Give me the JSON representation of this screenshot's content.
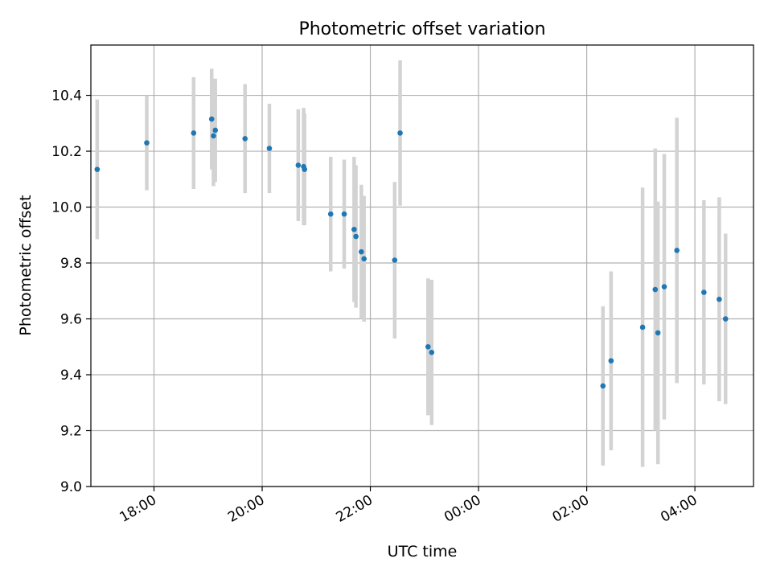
{
  "chart_data": {
    "type": "scatter",
    "title": "Photometric offset variation",
    "xlabel": "UTC time",
    "ylabel": "Photometric offset",
    "x_unit": "UTC time (hours after 00:00 of the first night; values above 24 fall on the next day)",
    "xlim": [
      "16:50",
      "05:05"
    ],
    "ylim": [
      9.0,
      10.58
    ],
    "x_ticks": [
      "18:00",
      "20:00",
      "22:00",
      "00:00",
      "02:00",
      "04:00"
    ],
    "y_ticks": [
      "9.0",
      "9.2",
      "9.4",
      "9.6",
      "9.8",
      "10.0",
      "10.2",
      "10.4"
    ],
    "grid": true,
    "colors": {
      "point": "#1f77b4",
      "errorbar": "#d3d3d3",
      "grid": "#b0b0b0"
    },
    "points": [
      {
        "t": "16:57",
        "y": 10.135,
        "err": 0.25
      },
      {
        "t": "17:52",
        "y": 10.23,
        "err": 0.17
      },
      {
        "t": "18:44",
        "y": 10.265,
        "err": 0.2
      },
      {
        "t": "19:04",
        "y": 10.315,
        "err": 0.18
      },
      {
        "t": "19:06",
        "y": 10.255,
        "err": 0.18
      },
      {
        "t": "19:08",
        "y": 10.275,
        "err": 0.185
      },
      {
        "t": "19:41",
        "y": 10.245,
        "err": 0.195
      },
      {
        "t": "20:08",
        "y": 10.21,
        "err": 0.16
      },
      {
        "t": "20:40",
        "y": 10.15,
        "err": 0.2
      },
      {
        "t": "20:46",
        "y": 10.145,
        "err": 0.21
      },
      {
        "t": "20:47",
        "y": 10.135,
        "err": 0.2
      },
      {
        "t": "21:16",
        "y": 9.975,
        "err": 0.205
      },
      {
        "t": "21:31",
        "y": 9.975,
        "err": 0.195
      },
      {
        "t": "21:42",
        "y": 9.92,
        "err": 0.26
      },
      {
        "t": "21:44",
        "y": 9.895,
        "err": 0.255
      },
      {
        "t": "21:50",
        "y": 9.84,
        "err": 0.24
      },
      {
        "t": "21:53",
        "y": 9.815,
        "err": 0.225
      },
      {
        "t": "22:27",
        "y": 9.81,
        "err": 0.28
      },
      {
        "t": "22:33",
        "y": 10.265,
        "err": 0.26
      },
      {
        "t": "23:04",
        "y": 9.5,
        "err": 0.245
      },
      {
        "t": "23:08",
        "y": 9.48,
        "err": 0.26
      },
      {
        "t": "02:18",
        "y": 9.36,
        "err": 0.285
      },
      {
        "t": "02:27",
        "y": 9.45,
        "err": 0.32
      },
      {
        "t": "03:02",
        "y": 9.57,
        "err": 0.5
      },
      {
        "t": "03:16",
        "y": 9.705,
        "err": 0.505
      },
      {
        "t": "03:19",
        "y": 9.55,
        "err": 0.47
      },
      {
        "t": "03:26",
        "y": 9.715,
        "err": 0.475
      },
      {
        "t": "03:40",
        "y": 9.845,
        "err": 0.475
      },
      {
        "t": "04:10",
        "y": 9.695,
        "err": 0.33
      },
      {
        "t": "04:27",
        "y": 9.67,
        "err": 0.365
      },
      {
        "t": "04:34",
        "y": 9.6,
        "err": 0.305
      }
    ]
  }
}
